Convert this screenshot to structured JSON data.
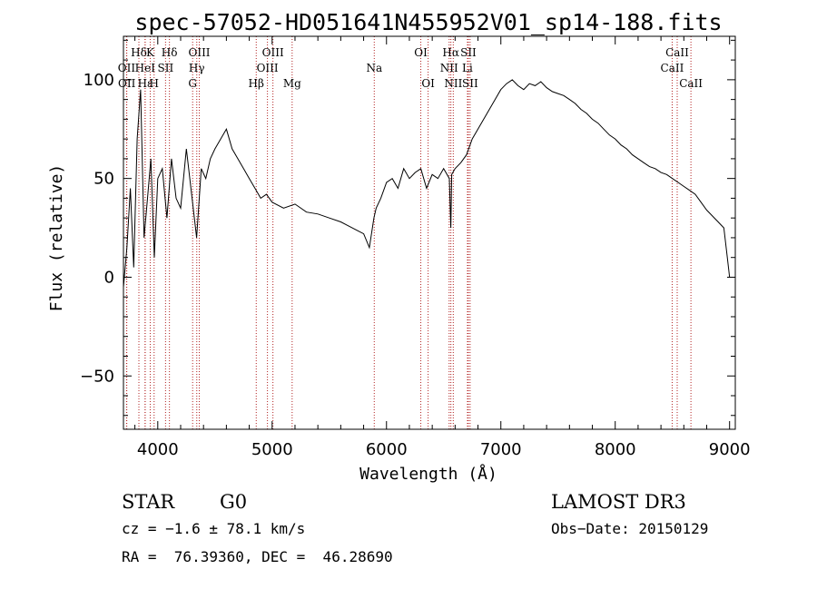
{
  "chart_data": {
    "type": "line",
    "title": "spec-57052-HD051641N455952V01_sp14-188.fits",
    "xlabel": "Wavelength (Å)",
    "ylabel": "Flux (relative)",
    "xlim": [
      3700,
      9050
    ],
    "ylim": [
      -77,
      122
    ],
    "x_ticks": [
      4000,
      5000,
      6000,
      7000,
      8000,
      9000
    ],
    "y_ticks": [
      -50,
      0,
      50,
      100
    ],
    "series": [
      {
        "name": "spectrum",
        "x": [
          3700,
          3730,
          3760,
          3790,
          3820,
          3850,
          3880,
          3910,
          3940,
          3970,
          4000,
          4040,
          4080,
          4120,
          4160,
          4200,
          4250,
          4300,
          4340,
          4380,
          4420,
          4460,
          4500,
          4550,
          4600,
          4650,
          4700,
          4750,
          4800,
          4850,
          4900,
          4950,
          5000,
          5100,
          5200,
          5300,
          5400,
          5500,
          5600,
          5700,
          5800,
          5850,
          5890,
          5910,
          5950,
          6000,
          6050,
          6100,
          6150,
          6200,
          6250,
          6300,
          6350,
          6400,
          6450,
          6500,
          6550,
          6562,
          6570,
          6600,
          6650,
          6700,
          6750,
          6800,
          6850,
          6900,
          6950,
          7000,
          7050,
          7100,
          7150,
          7200,
          7250,
          7300,
          7350,
          7400,
          7450,
          7500,
          7550,
          7600,
          7650,
          7700,
          7750,
          7800,
          7850,
          7900,
          7950,
          8000,
          8050,
          8100,
          8150,
          8200,
          8250,
          8300,
          8350,
          8400,
          8450,
          8500,
          8550,
          8600,
          8650,
          8700,
          8750,
          8800,
          8850,
          8900,
          8950,
          8980,
          9000
        ],
        "y": [
          -5,
          15,
          45,
          5,
          70,
          95,
          20,
          40,
          60,
          10,
          50,
          55,
          30,
          60,
          40,
          35,
          65,
          40,
          20,
          55,
          50,
          60,
          65,
          70,
          75,
          65,
          60,
          55,
          50,
          45,
          40,
          42,
          38,
          35,
          37,
          33,
          32,
          30,
          28,
          25,
          22,
          15,
          30,
          35,
          40,
          48,
          50,
          45,
          55,
          50,
          53,
          55,
          45,
          52,
          50,
          55,
          50,
          25,
          52,
          55,
          58,
          62,
          70,
          75,
          80,
          85,
          90,
          95,
          98,
          100,
          97,
          95,
          98,
          97,
          99,
          96,
          94,
          93,
          92,
          90,
          88,
          85,
          83,
          80,
          78,
          75,
          72,
          70,
          67,
          65,
          62,
          60,
          58,
          56,
          55,
          53,
          52,
          50,
          48,
          46,
          44,
          42,
          38,
          34,
          31,
          28,
          25,
          10,
          0
        ]
      }
    ],
    "spectral_lines": [
      {
        "label": "Hδ",
        "x": 3835,
        "row": 1
      },
      {
        "label": "OII",
        "x": 3727,
        "row": 2
      },
      {
        "label": "OII",
        "x": 3729,
        "row": 3
      },
      {
        "label": "HeI",
        "x": 3889,
        "row": 2
      },
      {
        "label": "Hε",
        "x": 3890,
        "row": 3
      },
      {
        "label": "K",
        "x": 3934,
        "row": 1
      },
      {
        "label": "H",
        "x": 3968,
        "row": 3
      },
      {
        "label": "SII",
        "x": 4068,
        "row": 2
      },
      {
        "label": "Hδ",
        "x": 4102,
        "row": 1
      },
      {
        "label": "OIII",
        "x": 4363,
        "row": 1
      },
      {
        "label": "Hγ",
        "x": 4341,
        "row": 2
      },
      {
        "label": "G",
        "x": 4305,
        "row": 3
      },
      {
        "label": "Hβ",
        "x": 4861,
        "row": 3
      },
      {
        "label": "OIII",
        "x": 5007,
        "row": 1
      },
      {
        "label": "OIII",
        "x": 4959,
        "row": 2
      },
      {
        "label": "Mg",
        "x": 5175,
        "row": 3
      },
      {
        "label": "Na",
        "x": 5893,
        "row": 2
      },
      {
        "label": "OI",
        "x": 6300,
        "row": 1
      },
      {
        "label": "OI",
        "x": 6364,
        "row": 3
      },
      {
        "label": "Hα",
        "x": 6563,
        "row": 1
      },
      {
        "label": "NII",
        "x": 6548,
        "row": 2
      },
      {
        "label": "NII",
        "x": 6584,
        "row": 3
      },
      {
        "label": "SII",
        "x": 6716,
        "row": 1
      },
      {
        "label": "Li",
        "x": 6708,
        "row": 2
      },
      {
        "label": "SII",
        "x": 6731,
        "row": 3
      },
      {
        "label": "CaII",
        "x": 8542,
        "row": 1
      },
      {
        "label": "CaII",
        "x": 8498,
        "row": 2
      },
      {
        "label": "CaII",
        "x": 8662,
        "row": 3
      }
    ],
    "line_color": "#000000",
    "marker_color": "#b22222"
  },
  "info": {
    "object_class": "STAR",
    "subclass": "G0",
    "survey": "LAMOST DR3",
    "cz": "cz = −1.6 ± 78.1 km/s",
    "obs_date": "Obs−Date: 20150129",
    "coords": "RA =  76.39360, DEC =  46.28690"
  }
}
